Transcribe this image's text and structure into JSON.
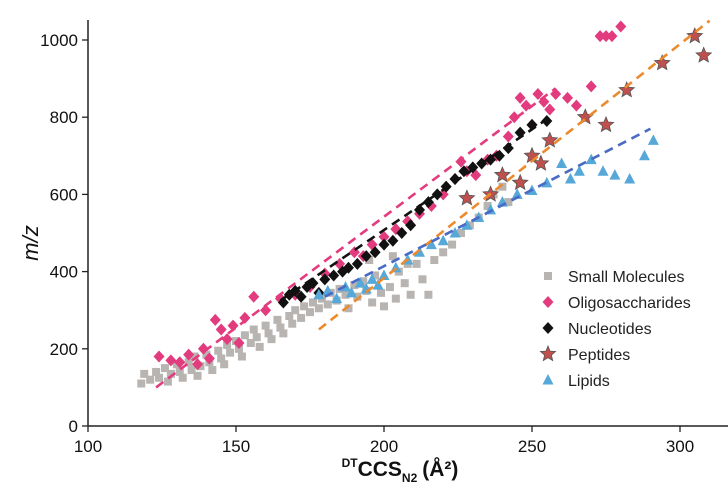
{
  "chart_data": {
    "type": "scatter",
    "xlabel": {
      "sup": "DT",
      "main": "CCS",
      "sub": "N2",
      "unit": "(Å²)"
    },
    "ylabel": "m/z",
    "xlim": [
      100,
      310
    ],
    "ylim": [
      0,
      1050
    ],
    "x_ticks": [
      "100",
      "150",
      "200",
      "250",
      "300"
    ],
    "y_ticks": [
      "0",
      "200",
      "400",
      "600",
      "800",
      "1000"
    ],
    "x_tick_values": [
      100,
      150,
      200,
      250,
      300
    ],
    "y_tick_values": [
      0,
      200,
      400,
      600,
      800,
      1000
    ],
    "grid": false,
    "legend_position": "right",
    "series": [
      {
        "name": "Small Molecules",
        "marker": "square",
        "color": "#b8b4b1",
        "points": [
          [
            118,
            110
          ],
          [
            119,
            135
          ],
          [
            121,
            120
          ],
          [
            123,
            140
          ],
          [
            124,
            125
          ],
          [
            126,
            150
          ],
          [
            127,
            115
          ],
          [
            128,
            135
          ],
          [
            130,
            160
          ],
          [
            131,
            140
          ],
          [
            132,
            125
          ],
          [
            134,
            165
          ],
          [
            135,
            145
          ],
          [
            136,
            180
          ],
          [
            137,
            130
          ],
          [
            138,
            155
          ],
          [
            140,
            185
          ],
          [
            141,
            165
          ],
          [
            142,
            145
          ],
          [
            144,
            195
          ],
          [
            145,
            175
          ],
          [
            146,
            160
          ],
          [
            147,
            210
          ],
          [
            148,
            190
          ],
          [
            150,
            220
          ],
          [
            151,
            200
          ],
          [
            152,
            180
          ],
          [
            153,
            235
          ],
          [
            155,
            215
          ],
          [
            156,
            250
          ],
          [
            157,
            230
          ],
          [
            158,
            205
          ],
          [
            160,
            260
          ],
          [
            161,
            240
          ],
          [
            162,
            225
          ],
          [
            164,
            275
          ],
          [
            165,
            255
          ],
          [
            166,
            240
          ],
          [
            168,
            285
          ],
          [
            169,
            265
          ],
          [
            170,
            300
          ],
          [
            172,
            280
          ],
          [
            173,
            310
          ],
          [
            175,
            295
          ],
          [
            176,
            320
          ],
          [
            178,
            305
          ],
          [
            179,
            330
          ],
          [
            181,
            315
          ],
          [
            182,
            345
          ],
          [
            184,
            325
          ],
          [
            185,
            355
          ],
          [
            187,
            340
          ],
          [
            188,
            305
          ],
          [
            190,
            365
          ],
          [
            191,
            335
          ],
          [
            193,
            375
          ],
          [
            194,
            350
          ],
          [
            196,
            320
          ],
          [
            197,
            390
          ],
          [
            199,
            345
          ],
          [
            200,
            310
          ],
          [
            202,
            360
          ],
          [
            204,
            330
          ],
          [
            205,
            400
          ],
          [
            207,
            370
          ],
          [
            209,
            340
          ],
          [
            211,
            420
          ],
          [
            213,
            380
          ],
          [
            215,
            340
          ],
          [
            217,
            430
          ],
          [
            220,
            450
          ],
          [
            223,
            470
          ],
          [
            226,
            500
          ],
          [
            229,
            520
          ],
          [
            232,
            540
          ],
          [
            235,
            570
          ],
          [
            237,
            600
          ],
          [
            240,
            620
          ],
          [
            242,
            580
          ],
          [
            195,
            430
          ],
          [
            203,
            440
          ],
          [
            208,
            420
          ]
        ]
      },
      {
        "name": "Oligosaccharides",
        "marker": "diamond",
        "color": "#e23b7e",
        "points": [
          [
            124,
            180
          ],
          [
            128,
            170
          ],
          [
            131,
            165
          ],
          [
            134,
            185
          ],
          [
            137,
            160
          ],
          [
            139,
            200
          ],
          [
            141,
            175
          ],
          [
            143,
            275
          ],
          [
            145,
            250
          ],
          [
            147,
            225
          ],
          [
            149,
            260
          ],
          [
            151,
            215
          ],
          [
            153,
            280
          ],
          [
            156,
            335
          ],
          [
            160,
            300
          ],
          [
            165,
            330
          ],
          [
            170,
            340
          ],
          [
            175,
            360
          ],
          [
            180,
            395
          ],
          [
            185,
            420
          ],
          [
            190,
            450
          ],
          [
            193,
            440
          ],
          [
            196,
            470
          ],
          [
            200,
            490
          ],
          [
            204,
            510
          ],
          [
            208,
            530
          ],
          [
            212,
            550
          ],
          [
            216,
            570
          ],
          [
            220,
            600
          ],
          [
            224,
            640
          ],
          [
            226,
            685
          ],
          [
            228,
            660
          ],
          [
            231,
            650
          ],
          [
            235,
            690
          ],
          [
            238,
            700
          ],
          [
            242,
            750
          ],
          [
            244,
            800
          ],
          [
            246,
            850
          ],
          [
            248,
            830
          ],
          [
            250,
            780
          ],
          [
            252,
            860
          ],
          [
            254,
            840
          ],
          [
            256,
            820
          ],
          [
            258,
            860
          ],
          [
            262,
            850
          ],
          [
            265,
            830
          ],
          [
            270,
            880
          ],
          [
            273,
            1010
          ],
          [
            275,
            1010
          ],
          [
            277,
            1010
          ],
          [
            280,
            1035
          ]
        ]
      },
      {
        "name": "Nucleotides",
        "marker": "diamond",
        "color": "#111111",
        "points": [
          [
            166,
            320
          ],
          [
            168,
            340
          ],
          [
            170,
            350
          ],
          [
            172,
            335
          ],
          [
            174,
            360
          ],
          [
            176,
            370
          ],
          [
            178,
            345
          ],
          [
            180,
            380
          ],
          [
            183,
            390
          ],
          [
            186,
            400
          ],
          [
            188,
            410
          ],
          [
            191,
            420
          ],
          [
            194,
            440
          ],
          [
            197,
            450
          ],
          [
            200,
            470
          ],
          [
            203,
            480
          ],
          [
            206,
            500
          ],
          [
            209,
            520
          ],
          [
            212,
            560
          ],
          [
            215,
            580
          ],
          [
            218,
            600
          ],
          [
            221,
            620
          ],
          [
            224,
            640
          ],
          [
            227,
            660
          ],
          [
            230,
            670
          ],
          [
            233,
            680
          ],
          [
            236,
            690
          ],
          [
            239,
            700
          ],
          [
            242,
            720
          ],
          [
            246,
            760
          ],
          [
            250,
            780
          ],
          [
            255,
            790
          ]
        ]
      },
      {
        "name": "Peptides",
        "marker": "star",
        "color": "#c0504d",
        "points": [
          [
            228,
            590
          ],
          [
            236,
            600
          ],
          [
            240,
            650
          ],
          [
            246,
            630
          ],
          [
            250,
            700
          ],
          [
            253,
            680
          ],
          [
            256,
            740
          ],
          [
            268,
            800
          ],
          [
            275,
            780
          ],
          [
            282,
            870
          ],
          [
            294,
            940
          ],
          [
            305,
            1010
          ],
          [
            308,
            960
          ]
        ]
      },
      {
        "name": "Lipids",
        "marker": "triangle",
        "color": "#55a8d8",
        "points": [
          [
            178,
            340
          ],
          [
            181,
            350
          ],
          [
            184,
            330
          ],
          [
            187,
            360
          ],
          [
            189,
            345
          ],
          [
            192,
            370
          ],
          [
            194,
            355
          ],
          [
            196,
            380
          ],
          [
            198,
            365
          ],
          [
            200,
            390
          ],
          [
            204,
            410
          ],
          [
            208,
            430
          ],
          [
            212,
            450
          ],
          [
            216,
            470
          ],
          [
            220,
            480
          ],
          [
            224,
            500
          ],
          [
            228,
            520
          ],
          [
            232,
            540
          ],
          [
            236,
            560
          ],
          [
            240,
            580
          ],
          [
            245,
            600
          ],
          [
            250,
            610
          ],
          [
            255,
            630
          ],
          [
            260,
            680
          ],
          [
            263,
            640
          ],
          [
            266,
            660
          ],
          [
            270,
            690
          ],
          [
            274,
            660
          ],
          [
            278,
            650
          ],
          [
            283,
            640
          ],
          [
            288,
            700
          ],
          [
            291,
            740
          ]
        ]
      }
    ],
    "trendlines": [
      {
        "series": "Oligosaccharides",
        "color": "#e23b7e",
        "from": [
          123,
          100
        ],
        "to": [
          258,
          875
        ]
      },
      {
        "series": "Nucleotides",
        "color": "#111111",
        "from": [
          165,
          325
        ],
        "to": [
          256,
          800
        ]
      },
      {
        "series": "Peptides",
        "color": "#ec8a2e",
        "from": [
          178,
          250
        ],
        "to": [
          310,
          1050
        ]
      },
      {
        "series": "Lipids",
        "color": "#4a6bc4",
        "from": [
          180,
          335
        ],
        "to": [
          290,
          770
        ]
      }
    ]
  }
}
